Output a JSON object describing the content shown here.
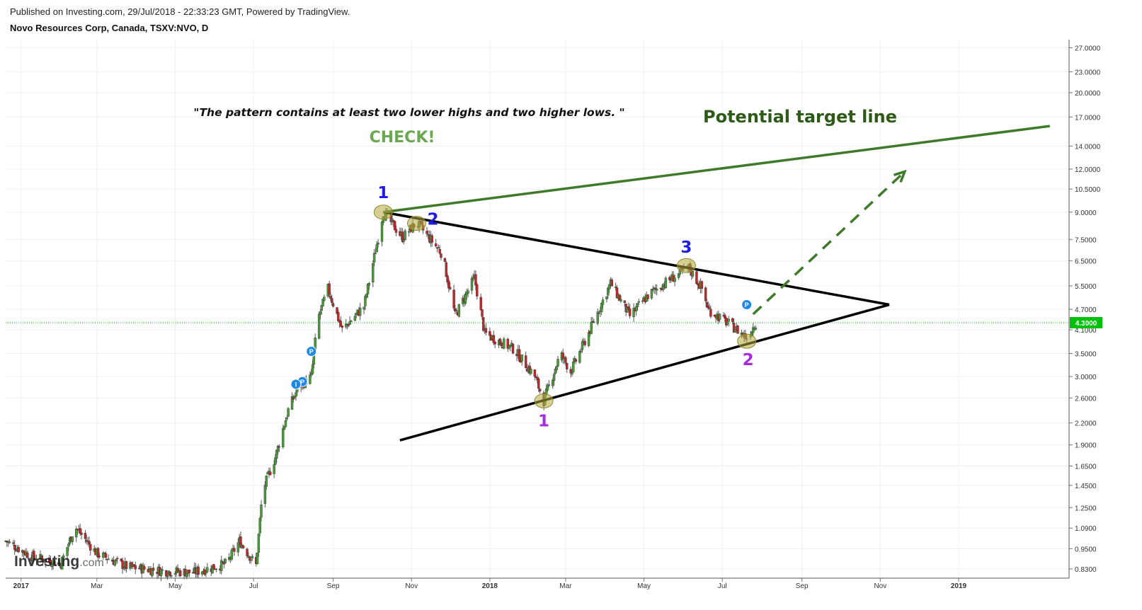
{
  "header": {
    "published": "Published on Investing.com, 29/Jul/2018 - 22:33:23 GMT, Powered by TradingView.",
    "symbol_line": "Novo Resources Corp, Canada, TSXV:NVO, D"
  },
  "watermark": {
    "brand": "Investing",
    "suffix": ".com"
  },
  "chart_data": {
    "type": "candlestick",
    "y_scale": "log",
    "ylim": [
      0.78,
      28.5
    ],
    "grid": true,
    "y_ticks": [
      "27.0000",
      "23.0000",
      "20.0000",
      "17.0000",
      "14.0000",
      "12.0000",
      "10.5000",
      "9.0000",
      "7.5000",
      "6.5000",
      "5.5000",
      "4.7000",
      "4.1000",
      "3.5000",
      "3.0000",
      "2.6000",
      "2.2000",
      "1.9000",
      "1.6500",
      "1.4500",
      "1.2500",
      "1.0900",
      "0.9500",
      "0.8300"
    ],
    "x_ticks": [
      {
        "label": "2017",
        "date": "2017-01-01",
        "major": true
      },
      {
        "label": "Mar",
        "date": "2017-03-01"
      },
      {
        "label": "May",
        "date": "2017-05-01"
      },
      {
        "label": "Jul",
        "date": "2017-07-01"
      },
      {
        "label": "Sep",
        "date": "2017-09-01"
      },
      {
        "label": "Nov",
        "date": "2017-11-01"
      },
      {
        "label": "2018",
        "date": "2018-01-01",
        "major": true
      },
      {
        "label": "Mar",
        "date": "2018-03-01"
      },
      {
        "label": "May",
        "date": "2018-05-01"
      },
      {
        "label": "Jul",
        "date": "2018-07-01"
      },
      {
        "label": "Sep",
        "date": "2018-09-01"
      },
      {
        "label": "Nov",
        "date": "2018-11-01"
      },
      {
        "label": "2019",
        "date": "2019-01-01",
        "major": true
      }
    ],
    "last_price": "4.3000",
    "price_anchors": [
      [
        "2016-12-20",
        1.0
      ],
      [
        "2017-01-10",
        0.9
      ],
      [
        "2017-02-01",
        0.86
      ],
      [
        "2017-02-12",
        1.1
      ],
      [
        "2017-03-01",
        0.92
      ],
      [
        "2017-03-25",
        0.84
      ],
      [
        "2017-04-20",
        0.82
      ],
      [
        "2017-05-15",
        0.81
      ],
      [
        "2017-06-10",
        0.86
      ],
      [
        "2017-06-20",
        1.0
      ],
      [
        "2017-07-03",
        0.85
      ],
      [
        "2017-07-08",
        1.4
      ],
      [
        "2017-07-18",
        1.75
      ],
      [
        "2017-07-28",
        2.4
      ],
      [
        "2017-08-05",
        2.8
      ],
      [
        "2017-08-15",
        3.0
      ],
      [
        "2017-08-20",
        4.4
      ],
      [
        "2017-08-28",
        5.4
      ],
      [
        "2017-09-08",
        4.1
      ],
      [
        "2017-09-25",
        4.8
      ],
      [
        "2017-10-02",
        6.4
      ],
      [
        "2017-10-10",
        9.0
      ],
      [
        "2017-10-25",
        7.6
      ],
      [
        "2017-11-05",
        8.4
      ],
      [
        "2017-11-25",
        6.8
      ],
      [
        "2017-12-05",
        4.5
      ],
      [
        "2017-12-20",
        5.8
      ],
      [
        "2017-12-28",
        4.0
      ],
      [
        "2018-01-20",
        3.6
      ],
      [
        "2018-02-05",
        3.0
      ],
      [
        "2018-02-12",
        2.55
      ],
      [
        "2018-02-25",
        3.5
      ],
      [
        "2018-03-05",
        3.1
      ],
      [
        "2018-03-20",
        4.1
      ],
      [
        "2018-04-05",
        5.6
      ],
      [
        "2018-04-20",
        4.5
      ],
      [
        "2018-05-05",
        5.2
      ],
      [
        "2018-05-20",
        5.7
      ],
      [
        "2018-06-05",
        6.2
      ],
      [
        "2018-06-15",
        5.4
      ],
      [
        "2018-06-20",
        4.7
      ],
      [
        "2018-07-05",
        4.3
      ],
      [
        "2018-07-20",
        3.9
      ],
      [
        "2018-07-27",
        4.3
      ]
    ],
    "markers": [
      {
        "label": "P",
        "date": "2017-08-15",
        "price": 3.55
      },
      {
        "label": "P",
        "date": "2017-08-08",
        "price": 2.9
      },
      {
        "label": "I",
        "date": "2017-08-03",
        "price": 2.85
      },
      {
        "label": "P",
        "date": "2018-07-20",
        "price": 4.85
      }
    ],
    "annotations": {
      "quote": "\"The pattern contains at least two lower highs and two higher lows. \"",
      "check": "CHECK!",
      "target": "Potential target line",
      "highs": [
        "1",
        "2",
        "3"
      ],
      "lows": [
        "1",
        "2"
      ]
    },
    "colors": {
      "up": "#4a9a3a",
      "down": "#c0262a",
      "target_line": "#3f7a2a",
      "target_text": "#2e5a17",
      "check": "#6aa84f",
      "highs_label": "#1d1de6",
      "lows_label": "#a42be0",
      "pattern_line": "#000000",
      "last_price": "#00c20a",
      "marker": "#1e88e5"
    }
  }
}
